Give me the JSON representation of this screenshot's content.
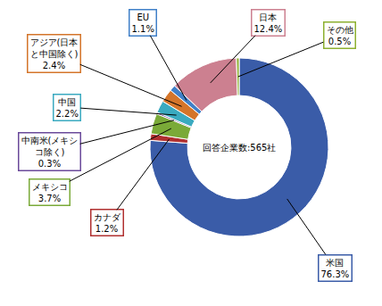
{
  "chart_data": {
    "type": "donut",
    "categories": [
      "米国",
      "カナダ",
      "メキシコ",
      "中南米(メキシ\nコ除く)",
      "中国",
      "アジア(日本\nと中国除く)",
      "EU",
      "日本",
      "その他"
    ],
    "values": [
      76.3,
      1.2,
      3.7,
      0.3,
      2.2,
      2.4,
      1.1,
      12.4,
      0.5
    ],
    "value_labels": [
      "76.3%",
      "1.2%",
      "3.7%",
      "0.3%",
      "2.2%",
      "2.4%",
      "1.1%",
      "12.4%",
      "0.5%"
    ],
    "colors": [
      "#3A5CA8",
      "#B03030",
      "#7AAA38",
      "#6A4A9A",
      "#3AAAC0",
      "#D4752A",
      "#4080C8",
      "#CC8090",
      "#8DB030"
    ],
    "data_labels": true,
    "annotations": [
      "回答企業数:565社"
    ]
  }
}
